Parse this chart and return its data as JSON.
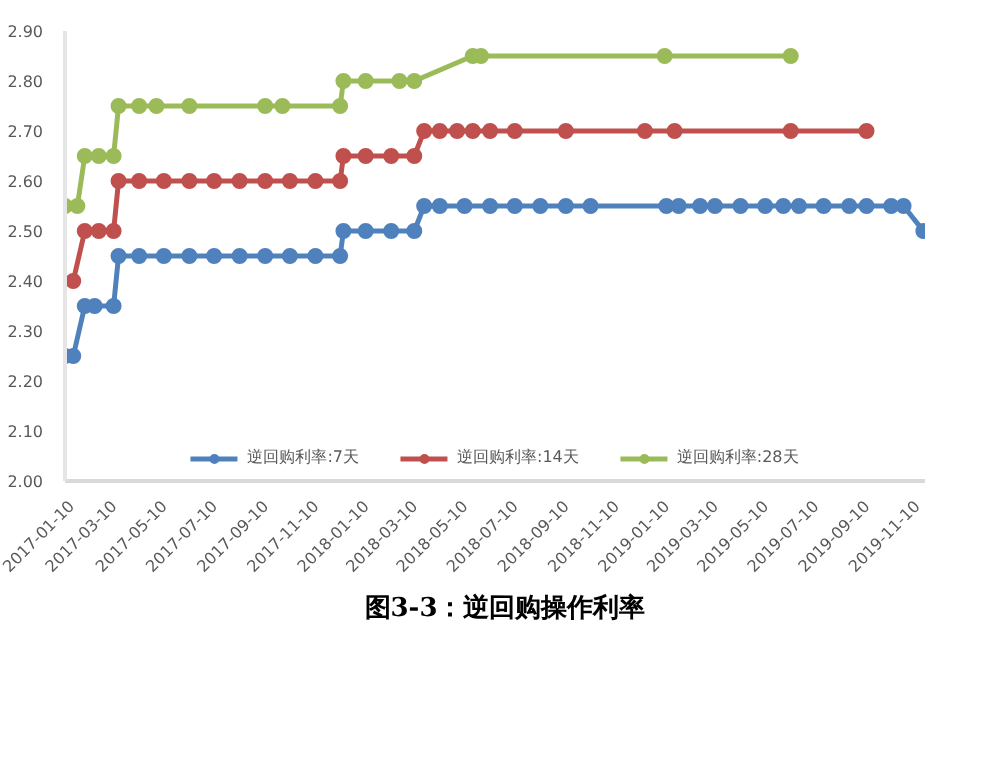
{
  "chart_data": {
    "type": "line",
    "title": "图3-3：逆回购操作利率",
    "xlim": [
      "2017-01-10",
      "2019-11-20"
    ],
    "xticks": [
      "2017-01-10",
      "2017-03-10",
      "2017-05-10",
      "2017-07-10",
      "2017-09-10",
      "2017-11-10",
      "2018-01-10",
      "2018-03-10",
      "2018-05-10",
      "2018-07-10",
      "2018-09-10",
      "2018-11-10",
      "2019-01-10",
      "2019-03-10",
      "2019-05-10",
      "2019-07-10",
      "2019-09-10",
      "2019-11-10"
    ],
    "ylim": [
      2.0,
      2.9
    ],
    "yticks": [
      {
        "value": 2.0,
        "label": "2.00"
      },
      {
        "value": 2.1,
        "label": "2.10"
      },
      {
        "value": 2.2,
        "label": "2.20"
      },
      {
        "value": 2.3,
        "label": "2.30"
      },
      {
        "value": 2.4,
        "label": "2.40"
      },
      {
        "value": 2.5,
        "label": "2.50"
      },
      {
        "value": 2.6,
        "label": "2.60"
      },
      {
        "value": 2.7,
        "label": "2.70"
      },
      {
        "value": 2.8,
        "label": "2.80"
      },
      {
        "value": 2.9,
        "label": "2.90"
      }
    ],
    "grid": false,
    "legend": "bottom",
    "marker": "circle",
    "line_style": "solid",
    "series": [
      {
        "name": "逆回购利率:7天",
        "color": "#4f81bd",
        "x": [
          "2017-01-10",
          "2017-01-20",
          "2017-02-03",
          "2017-02-15",
          "2017-03-10",
          "2017-03-16",
          "2017-04-10",
          "2017-05-10",
          "2017-06-10",
          "2017-07-10",
          "2017-08-10",
          "2017-09-10",
          "2017-10-10",
          "2017-11-10",
          "2017-12-10",
          "2017-12-14",
          "2018-01-10",
          "2018-02-10",
          "2018-03-10",
          "2018-03-22",
          "2018-04-10",
          "2018-05-10",
          "2018-06-10",
          "2018-07-10",
          "2018-08-10",
          "2018-09-10",
          "2018-10-10",
          "2019-01-10",
          "2019-01-25",
          "2019-02-20",
          "2019-03-10",
          "2019-04-10",
          "2019-05-10",
          "2019-06-01",
          "2019-06-20",
          "2019-07-20",
          "2019-08-20",
          "2019-09-10",
          "2019-10-10",
          "2019-10-25",
          "2019-11-18"
        ],
        "values": [
          2.25,
          2.25,
          2.35,
          2.35,
          2.35,
          2.45,
          2.45,
          2.45,
          2.45,
          2.45,
          2.45,
          2.45,
          2.45,
          2.45,
          2.45,
          2.5,
          2.5,
          2.5,
          2.5,
          2.55,
          2.55,
          2.55,
          2.55,
          2.55,
          2.55,
          2.55,
          2.55,
          2.55,
          2.55,
          2.55,
          2.55,
          2.55,
          2.55,
          2.55,
          2.55,
          2.55,
          2.55,
          2.55,
          2.55,
          2.55,
          2.5
        ]
      },
      {
        "name": "逆回购利率:14天",
        "color": "#c0504d",
        "x": [
          "2017-01-20",
          "2017-02-03",
          "2017-02-20",
          "2017-03-10",
          "2017-03-16",
          "2017-04-10",
          "2017-05-10",
          "2017-06-10",
          "2017-07-10",
          "2017-08-10",
          "2017-09-10",
          "2017-10-10",
          "2017-11-10",
          "2017-12-10",
          "2017-12-14",
          "2018-01-10",
          "2018-02-10",
          "2018-03-10",
          "2018-03-22",
          "2018-04-10",
          "2018-05-01",
          "2018-05-20",
          "2018-06-10",
          "2018-07-10",
          "2018-09-10",
          "2018-12-15",
          "2019-01-20",
          "2019-06-10",
          "2019-09-10"
        ],
        "values": [
          2.4,
          2.5,
          2.5,
          2.5,
          2.6,
          2.6,
          2.6,
          2.6,
          2.6,
          2.6,
          2.6,
          2.6,
          2.6,
          2.6,
          2.65,
          2.65,
          2.65,
          2.65,
          2.7,
          2.7,
          2.7,
          2.7,
          2.7,
          2.7,
          2.7,
          2.7,
          2.7,
          2.7,
          2.7
        ]
      },
      {
        "name": "逆回购利率:28天",
        "color": "#9bbb59",
        "x": [
          "2017-01-10",
          "2017-01-25",
          "2017-02-03",
          "2017-02-20",
          "2017-03-10",
          "2017-03-16",
          "2017-04-10",
          "2017-05-01",
          "2017-06-10",
          "2017-09-10",
          "2017-10-01",
          "2017-12-10",
          "2017-12-14",
          "2018-01-10",
          "2018-02-20",
          "2018-03-10",
          "2018-05-20",
          "2018-05-30",
          "2019-01-08",
          "2019-06-10"
        ],
        "values": [
          2.55,
          2.55,
          2.65,
          2.65,
          2.65,
          2.75,
          2.75,
          2.75,
          2.75,
          2.75,
          2.75,
          2.75,
          2.8,
          2.8,
          2.8,
          2.8,
          2.85,
          2.85,
          2.85,
          2.85
        ]
      }
    ]
  }
}
